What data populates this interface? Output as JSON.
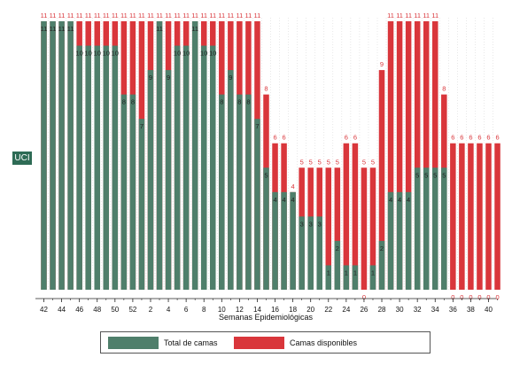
{
  "chart_data": {
    "type": "bar",
    "ylabel": "UCI",
    "xlabel": "Semanas Epidemiológicas",
    "ylim": [
      0,
      11
    ],
    "x_ticks": [
      "42",
      "44",
      "46",
      "48",
      "50",
      "52",
      "2",
      "4",
      "6",
      "8",
      "10",
      "12",
      "14",
      "16",
      "18",
      "20",
      "22",
      "24",
      "26",
      "28",
      "30",
      "32",
      "34",
      "36",
      "38",
      "40"
    ],
    "series": [
      {
        "name": "Total de camas",
        "color": "#4f7f6b",
        "values": [
          11,
          11,
          11,
          11,
          10,
          10,
          10,
          10,
          10,
          8,
          8,
          7,
          9,
          11,
          9,
          10,
          10,
          11,
          10,
          10,
          8,
          9,
          8,
          8,
          7,
          5,
          4,
          4,
          4,
          3,
          3,
          3,
          1,
          2,
          1,
          1,
          0,
          1,
          2,
          4,
          4,
          4,
          5,
          5,
          5,
          5,
          0,
          0,
          0,
          0,
          0,
          0
        ]
      },
      {
        "name": "Camas disponibles",
        "color": "#d9363b",
        "values": [
          11,
          11,
          11,
          11,
          11,
          11,
          11,
          11,
          11,
          11,
          11,
          11,
          11,
          11,
          11,
          11,
          11,
          11,
          11,
          11,
          11,
          11,
          11,
          11,
          11,
          8,
          6,
          6,
          4,
          5,
          5,
          5,
          5,
          5,
          6,
          6,
          5,
          5,
          9,
          11,
          11,
          11,
          11,
          11,
          11,
          8,
          6,
          6,
          6,
          6,
          6,
          6
        ]
      }
    ]
  },
  "legend": {
    "items": [
      {
        "label": "Total de camas",
        "color": "#4f7f6b"
      },
      {
        "label": "Camas disponibles",
        "color": "#d9363b"
      }
    ]
  }
}
